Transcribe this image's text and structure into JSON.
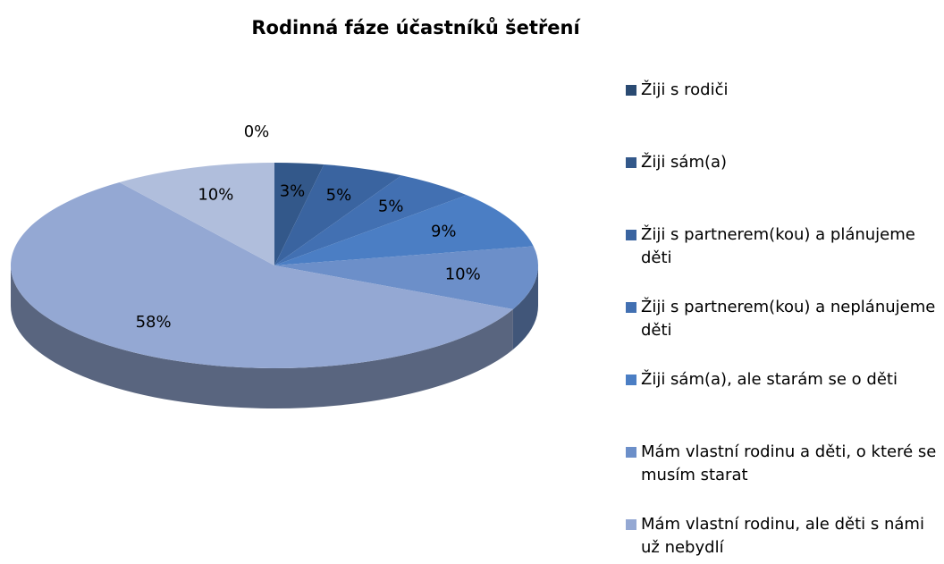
{
  "chart_data": {
    "type": "pie3d",
    "title": "Rodinná fáze účastníků šetření",
    "categories": [
      "Žiji s rodiči",
      "Žiji sám(a)",
      "Žiji s partnerem(kou) a plánujeme děti",
      "Žiji s partnerem(kou) a neplánujeme děti",
      "Žiji sám(a), ale starám se o děti",
      "Mám vlastní rodinu a děti, o které se musím starat",
      "Mám vlastní rodinu, ale děti s námi už nebydlí",
      null
    ],
    "values": [
      0,
      3,
      5,
      5,
      9,
      10,
      58,
      10
    ],
    "value_labels": [
      "0%",
      "3%",
      "5%",
      "5%",
      "9%",
      "10%",
      "58%",
      "10%"
    ],
    "colors": [
      "#2a4a72",
      "#33588a",
      "#3a64a0",
      "#4270b2",
      "#4b7ec4",
      "#6c8fc9",
      "#94a8d3",
      "#b0bedc"
    ],
    "legend": "right"
  }
}
